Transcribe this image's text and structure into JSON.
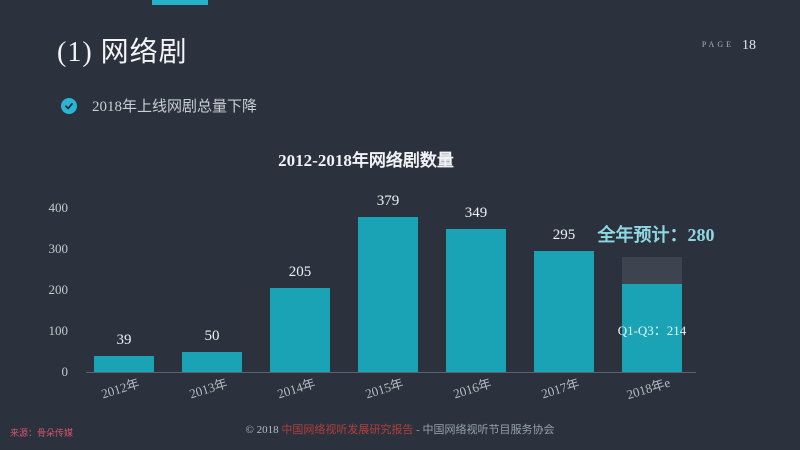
{
  "header": {
    "title": "(1) 网络剧",
    "page_label": "PAGE",
    "page_number": "18"
  },
  "bullet": {
    "icon": "check-circle",
    "text": "2018年上线网剧总量下降"
  },
  "chart_data": {
    "type": "bar",
    "title": "2012-2018年网络剧数量",
    "categories": [
      "2012年",
      "2013年",
      "2014年",
      "2015年",
      "2016年",
      "2017年",
      "2018年e"
    ],
    "values": [
      39,
      50,
      205,
      379,
      349,
      295,
      214
    ],
    "ylim": [
      0,
      400
    ],
    "yticks": [
      0,
      100,
      200,
      300,
      400
    ],
    "grid": false,
    "legend": "none",
    "bar_color": "#1aa2b5",
    "forecast": {
      "category": "2018年e",
      "actual": 214,
      "actual_label": "Q1-Q3：214",
      "total": 280,
      "total_label": "全年预计：280",
      "cap_color": "#3d4450",
      "label_color": "#8ed8e2"
    }
  },
  "footer": {
    "source": "来源：骨朵传媒",
    "copyright_prefix": "© 2018 ",
    "copyright_red": "中国网络视听发展研究报告",
    "copyright_suffix": " - 中国网络视听节目服务协会"
  },
  "colors": {
    "background": "#2b313d",
    "accent": "#23b3cb",
    "bar": "#1aa2b5"
  }
}
